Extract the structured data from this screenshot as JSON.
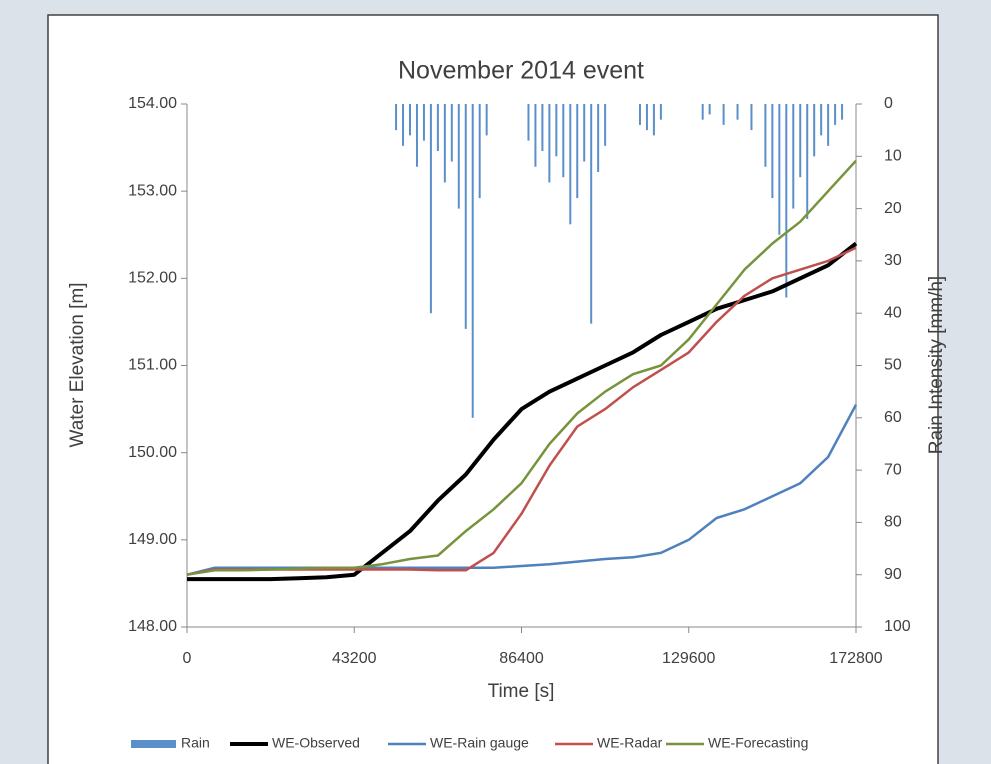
{
  "chart_data": {
    "type": "line",
    "title": "November 2014 event",
    "xlabel": "Time [s]",
    "ylabel": "Water Elevation [m]",
    "y2label": "Rain Intensity [mm/h]",
    "x": [
      0,
      7200,
      14400,
      21600,
      28800,
      36000,
      43200,
      50400,
      57600,
      64800,
      72000,
      79200,
      86400,
      93600,
      100800,
      108000,
      115200,
      122400,
      129600,
      136800,
      144000,
      151200,
      158400,
      165600,
      172800
    ],
    "xlim": [
      0,
      172800
    ],
    "xticks": [
      0,
      43200,
      86400,
      129600,
      172800
    ],
    "ylim": [
      148,
      154
    ],
    "yticks": [
      {
        "value": 148,
        "label": "148.00"
      },
      {
        "value": 149,
        "label": "149.00"
      },
      {
        "value": 150,
        "label": "150.00"
      },
      {
        "value": 151,
        "label": "151.00"
      },
      {
        "value": 152,
        "label": "152.00"
      },
      {
        "value": 153,
        "label": "153.00"
      },
      {
        "value": 154,
        "label": "154.00"
      }
    ],
    "y2lim": [
      100,
      0
    ],
    "y2ticks": [
      0,
      10,
      20,
      30,
      40,
      50,
      60,
      70,
      80,
      90,
      100
    ],
    "series": [
      {
        "name": "Rain",
        "type": "bar",
        "axis": "y2",
        "color": "#5b8fc9",
        "x": [
          54000,
          55800,
          57600,
          59400,
          61200,
          63000,
          64800,
          66600,
          68400,
          70200,
          72000,
          73800,
          75600,
          77400,
          88200,
          90000,
          91800,
          93600,
          95400,
          97200,
          99000,
          100800,
          102600,
          104400,
          106200,
          108000,
          117000,
          118800,
          120600,
          122400,
          133200,
          135000,
          138600,
          142200,
          145800,
          149400,
          151200,
          153000,
          154800,
          156600,
          158400,
          160200,
          162000,
          163800,
          165600,
          167400,
          169200
        ],
        "values": [
          5,
          8,
          6,
          12,
          7,
          40,
          9,
          15,
          11,
          20,
          43,
          60,
          18,
          6,
          7,
          12,
          9,
          15,
          10,
          14,
          23,
          18,
          11,
          42,
          13,
          8,
          4,
          5,
          6,
          3,
          3,
          2,
          4,
          3,
          5,
          12,
          18,
          25,
          37,
          20,
          14,
          22,
          10,
          6,
          8,
          4,
          3
        ]
      },
      {
        "name": "WE-Observed",
        "color": "#000000",
        "width": 4,
        "values": [
          148.55,
          148.55,
          148.55,
          148.55,
          148.56,
          148.57,
          148.6,
          148.85,
          149.1,
          149.45,
          149.75,
          150.15,
          150.5,
          150.7,
          150.85,
          151.0,
          151.15,
          151.35,
          151.5,
          151.65,
          151.75,
          151.85,
          152.0,
          152.15,
          152.4
        ]
      },
      {
        "name": "WE-Rain gauge",
        "color": "#4f81bd",
        "width": 2.5,
        "values": [
          148.6,
          148.68,
          148.68,
          148.68,
          148.68,
          148.68,
          148.68,
          148.68,
          148.68,
          148.68,
          148.68,
          148.68,
          148.7,
          148.72,
          148.75,
          148.78,
          148.8,
          148.85,
          149.0,
          149.25,
          149.35,
          149.5,
          149.65,
          149.95,
          150.55
        ]
      },
      {
        "name": "WE-Radar",
        "color": "#c0504d",
        "width": 2.5,
        "values": [
          148.6,
          148.66,
          148.66,
          148.66,
          148.66,
          148.66,
          148.66,
          148.66,
          148.66,
          148.65,
          148.65,
          148.85,
          149.3,
          149.85,
          150.3,
          150.5,
          150.75,
          150.95,
          151.15,
          151.5,
          151.8,
          152.0,
          152.1,
          152.2,
          152.35
        ]
      },
      {
        "name": "WE-Forecasting",
        "color": "#77933c",
        "width": 2.5,
        "values": [
          148.6,
          148.65,
          148.65,
          148.66,
          148.67,
          148.68,
          148.68,
          148.72,
          148.78,
          148.82,
          149.1,
          149.35,
          149.65,
          150.1,
          150.45,
          150.7,
          150.9,
          151.0,
          151.3,
          151.7,
          152.1,
          152.4,
          152.65,
          153.0,
          153.35
        ]
      }
    ]
  }
}
